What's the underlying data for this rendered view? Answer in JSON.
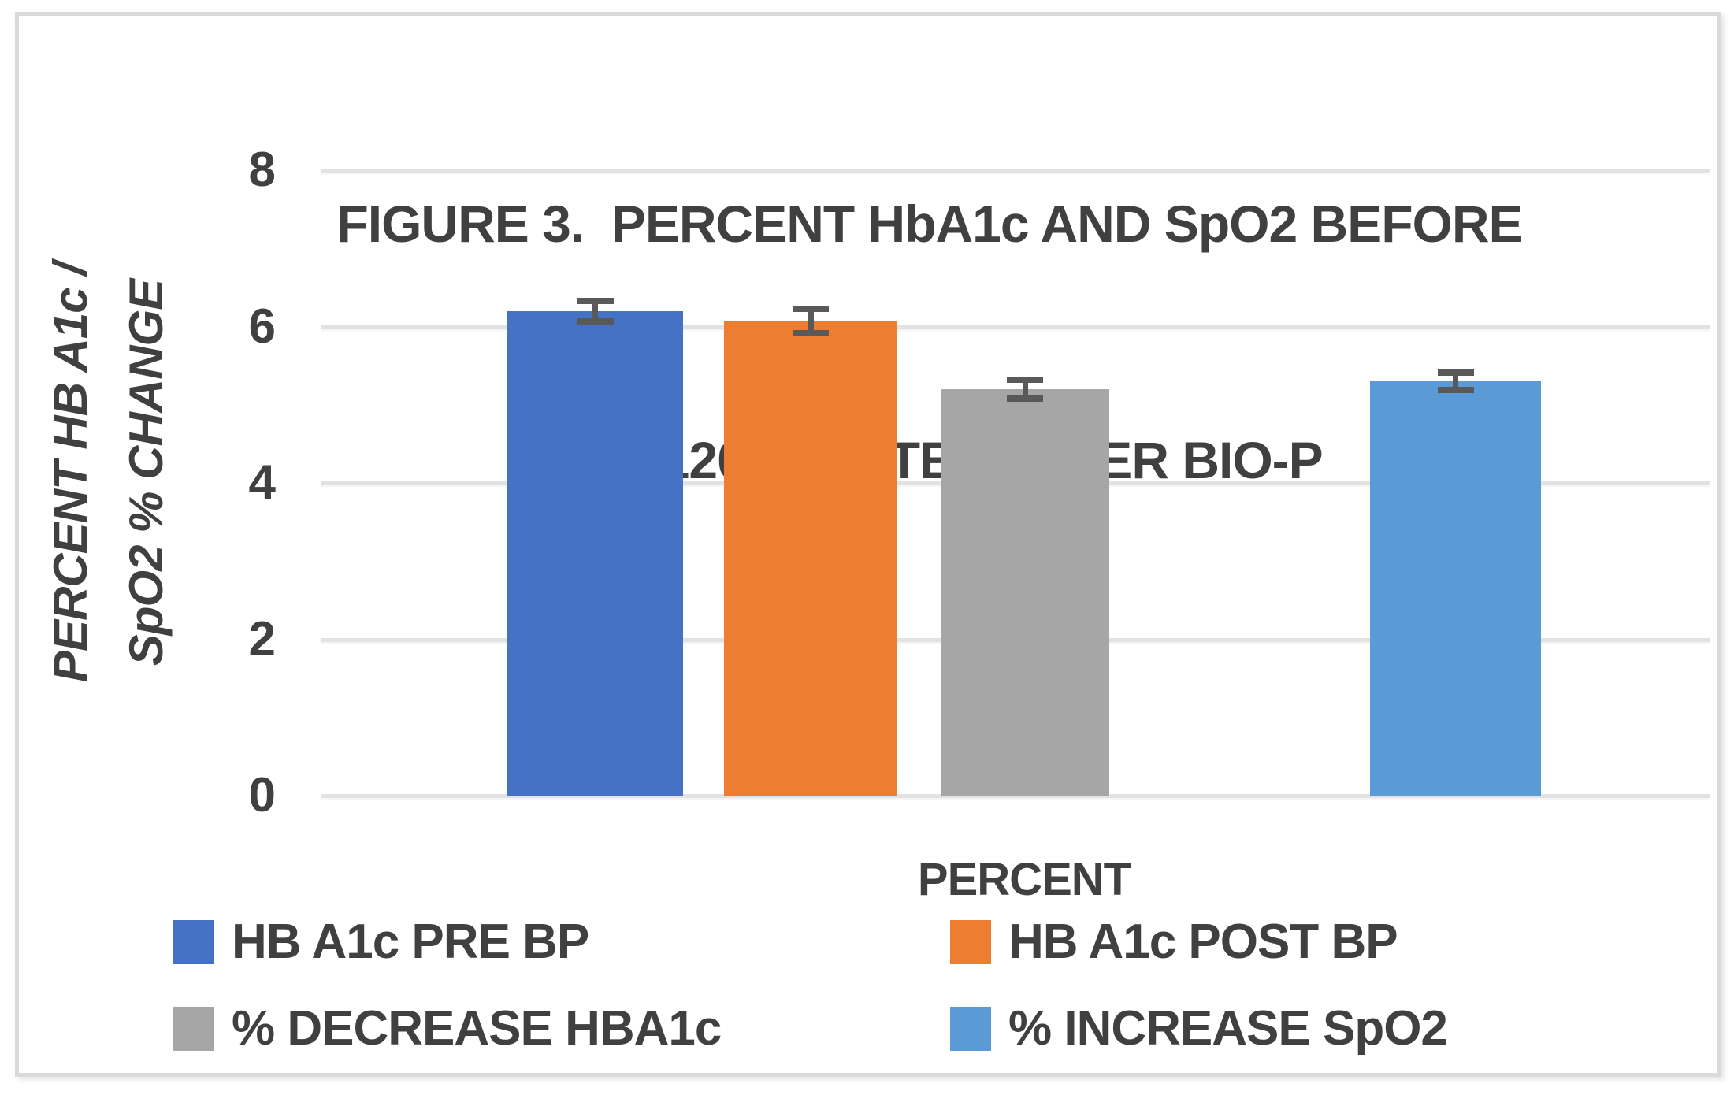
{
  "figure": {
    "title_line1": "FIGURE 3.  PERCENT HbA1c AND SpO2 BEFORE",
    "title_line2": "AND 120 MINUTES AFTER BIO-P"
  },
  "chart_data": {
    "type": "bar",
    "title": "FIGURE 3.  PERCENT HbA1c AND SpO2 BEFORE AND 120 MINUTES AFTER BIO-P",
    "xlabel": "PERCENT",
    "ylabel": "PERCENT HB A1c / SpO2 % CHANGE",
    "ylabel_line1": "PERCENT HB A1c /",
    "ylabel_line2": "SpO2 % CHANGE",
    "ylim": [
      0,
      8
    ],
    "yticks": [
      0,
      2,
      4,
      6,
      8
    ],
    "grid": true,
    "legend_position": "bottom",
    "categories": [
      "PERCENT"
    ],
    "series": [
      {
        "name": "HB A1c PRE BP",
        "value": 6.2,
        "error": 0.13,
        "color": "#4472C4"
      },
      {
        "name": "HB A1c POST BP",
        "value": 6.07,
        "error": 0.16,
        "color": "#ED7D31"
      },
      {
        "name": "% DECREASE HBA1c",
        "value": 5.2,
        "error": 0.12,
        "color": "#A6A6A6"
      },
      {
        "name": "% INCREASE SpO2",
        "value": 5.3,
        "error": 0.11,
        "color": "#5B9BD5"
      }
    ],
    "colors": {
      "text": "#404040",
      "gridline": "#E2E2E2",
      "error_bar": "#595959",
      "frame_border": "#DADADA"
    }
  }
}
